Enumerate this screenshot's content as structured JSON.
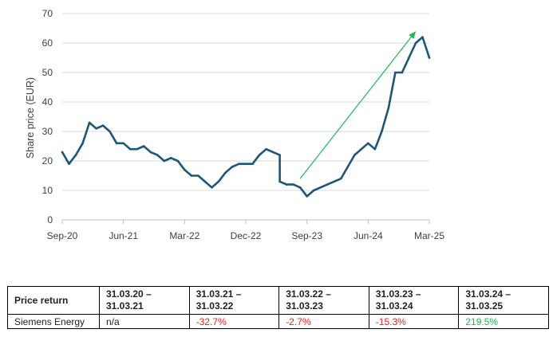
{
  "chart_data": {
    "type": "line",
    "ylabel": "Share price (EUR)",
    "xlabel": "",
    "ylim": [
      0,
      70
    ],
    "yticks": [
      "0",
      "10",
      "20",
      "30",
      "40",
      "50",
      "60",
      "70"
    ],
    "xlim": [
      "2020-09",
      "2025-03"
    ],
    "xticks": [
      "Sep-20",
      "Jun-21",
      "Mar-22",
      "Dec-22",
      "Sep-23",
      "Jun-24",
      "Mar-25"
    ],
    "grid": "horizontal",
    "line_color": "#1c5679",
    "arrow_color": "#1db954",
    "arrow": {
      "from": [
        "2023-08",
        14
      ],
      "to": [
        "2025-01",
        64
      ]
    },
    "series": [
      {
        "x": [
          "2020-09",
          "2020-10",
          "2020-11",
          "2020-12",
          "2021-01",
          "2021-02",
          "2021-03",
          "2021-04",
          "2021-05",
          "2021-06",
          "2021-07",
          "2021-08",
          "2021-09",
          "2021-10",
          "2021-11",
          "2021-12",
          "2022-01",
          "2022-02",
          "2022-03",
          "2022-04",
          "2022-05",
          "2022-06",
          "2022-07",
          "2022-08",
          "2022-09",
          "2022-10",
          "2022-11",
          "2022-12",
          "2023-01",
          "2023-02",
          "2023-03",
          "2023-04",
          "2023-05",
          "2023-05",
          "2023-06",
          "2023-06",
          "2023-07",
          "2023-08",
          "2023-09",
          "2023-10",
          "2023-11",
          "2023-12",
          "2024-01",
          "2024-02",
          "2024-03",
          "2024-04",
          "2024-05",
          "2024-06",
          "2024-07",
          "2024-08",
          "2024-09",
          "2024-10",
          "2024-11",
          "2024-12",
          "2025-01",
          "2025-02",
          "2025-03"
        ],
        "values": [
          23,
          19,
          22,
          26,
          33,
          31,
          32,
          30,
          26,
          26,
          24,
          24,
          25,
          23,
          22,
          20,
          21,
          20,
          17,
          15,
          15,
          13,
          11,
          13,
          16,
          18,
          19,
          19,
          19,
          22,
          24,
          23,
          22,
          13,
          12,
          12,
          12,
          11,
          8,
          10,
          11,
          12,
          13,
          14,
          18,
          22,
          24,
          26,
          24,
          30,
          38,
          50,
          50,
          55,
          60,
          62,
          55
        ]
      }
    ]
  },
  "table": {
    "row_header": "Price return",
    "periods": [
      [
        "31.03.20 –",
        "31.03.21"
      ],
      [
        "31.03.21 –",
        "31.03.22"
      ],
      [
        "31.03.22 –",
        "31.03.23"
      ],
      [
        "31.03.23 –",
        "31.03.24"
      ],
      [
        "31.03.24 –",
        "31.03.25"
      ]
    ],
    "company": "Siemens Energy",
    "values": [
      "n/a",
      "-32.7%",
      "-2.7%",
      "-15.3%",
      "219.5%"
    ],
    "colors": {
      "negative": "#ee1c1c",
      "positive": "#1db954"
    }
  }
}
